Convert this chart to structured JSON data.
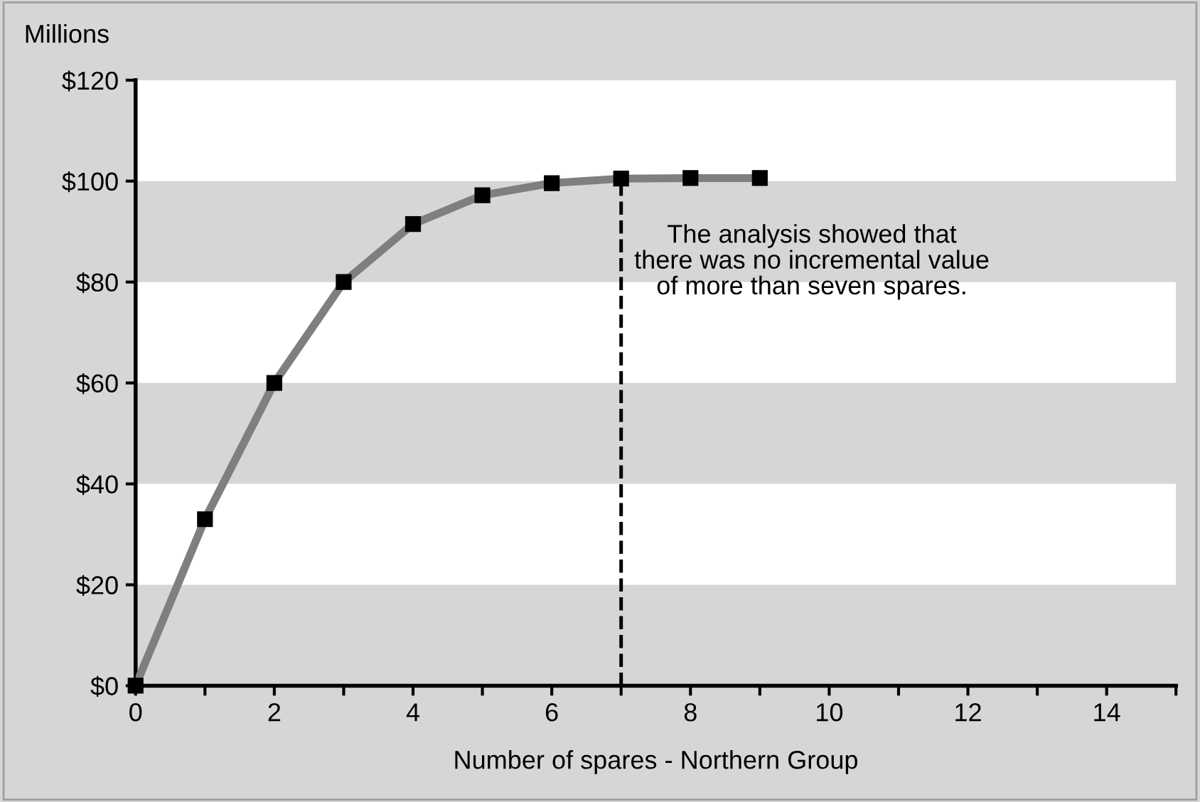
{
  "chart_data": {
    "type": "line",
    "xlabel": "Number of spares - Northern Group",
    "ylabel": "Millions",
    "x": [
      0,
      1,
      2,
      3,
      4,
      5,
      6,
      7,
      8,
      9
    ],
    "series": [
      {
        "color": "#7f7f7f",
        "values": [
          0,
          33,
          60,
          80,
          91.5,
          97.2,
          99.6,
          100.5,
          100.6,
          100.6
        ]
      }
    ],
    "marker": "square",
    "line_style": "solid",
    "xlim": [
      0,
      15
    ],
    "xticks": [
      0,
      {
        "value": 1,
        "label": null
      },
      2,
      {
        "value": 3,
        "label": null
      },
      4,
      {
        "value": 5,
        "label": null
      },
      6,
      {
        "value": 7,
        "label": null
      },
      8,
      {
        "value": 9,
        "label": null
      },
      10,
      {
        "value": 11,
        "label": null
      },
      12,
      {
        "value": 13,
        "label": null
      },
      14,
      {
        "value": 15,
        "label": null
      }
    ],
    "ylim": [
      0,
      120
    ],
    "yticks": [
      {
        "value": 0,
        "label": "$0"
      },
      {
        "value": 20,
        "label": "$20"
      },
      {
        "value": 40,
        "label": "$40"
      },
      {
        "value": 60,
        "label": "$60"
      },
      {
        "value": 80,
        "label": "$80"
      },
      {
        "value": 100,
        "label": "$100"
      },
      {
        "value": 120,
        "label": "$120"
      }
    ],
    "bands": [
      {
        "axis": "y",
        "from": 20,
        "to": 40,
        "color": "#ffffff"
      },
      {
        "axis": "y",
        "from": 60,
        "to": 80,
        "color": "#ffffff"
      },
      {
        "axis": "y",
        "from": 100,
        "to": 120,
        "color": "#ffffff"
      }
    ],
    "ref_lines": [
      {
        "axis": "x",
        "value": 7,
        "color": "#000000",
        "line_style": "dashed"
      }
    ],
    "annotations": [
      "The analysis showed that\nthere was no incremental value\nof more than seven spares."
    ],
    "grid": false,
    "legend": false
  }
}
